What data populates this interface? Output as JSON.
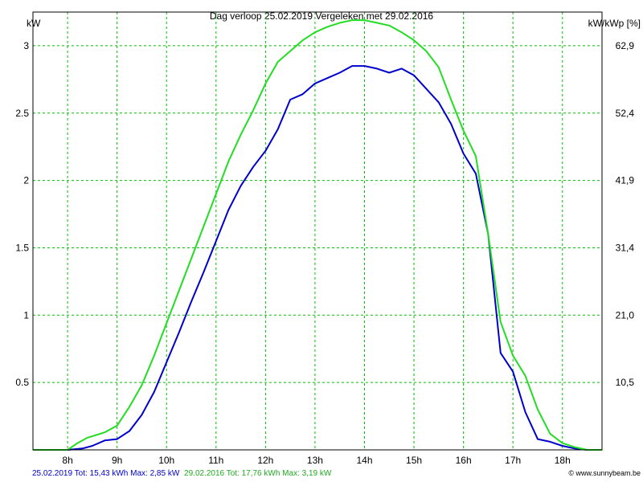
{
  "chart_data": {
    "type": "line",
    "title": "Dag  verloop 25.02.2019   Vergeleken met 29.02.2016",
    "y_left_unit": "kW",
    "y_right_unit": "kW/kWp [%]",
    "ylim": [
      0,
      3.25
    ],
    "xlim": [
      7.3,
      18.8
    ],
    "x_ticks": [
      8,
      9,
      10,
      11,
      12,
      13,
      14,
      15,
      16,
      17,
      18
    ],
    "x_tick_labels": [
      "8h",
      "9h",
      "10h",
      "11h",
      "12h",
      "13h",
      "14h",
      "15h",
      "16h",
      "17h",
      "18h"
    ],
    "y_left_ticks": [
      0.5,
      1,
      1.5,
      2,
      2.5,
      3
    ],
    "y_left_tick_labels": [
      "0.5",
      "1",
      "1.5",
      "2",
      "2.5",
      "3"
    ],
    "y_right_tick_labels": [
      "10,5",
      "21,0",
      "31,4",
      "41,9",
      "52,4",
      "62,9"
    ],
    "grid": true,
    "series": [
      {
        "color": "#0000cc",
        "x": [
          7.3,
          8.0,
          8.3,
          8.5,
          8.75,
          9.0,
          9.25,
          9.5,
          9.75,
          10.0,
          10.25,
          10.5,
          10.75,
          11.0,
          11.25,
          11.5,
          11.75,
          12.0,
          12.25,
          12.5,
          12.75,
          13.0,
          13.25,
          13.5,
          13.75,
          14.0,
          14.25,
          14.5,
          14.75,
          15.0,
          15.25,
          15.5,
          15.75,
          16.0,
          16.25,
          16.5,
          16.75,
          17.0,
          17.25,
          17.5,
          17.75,
          18.0,
          18.25,
          18.5,
          18.8
        ],
        "values": [
          0,
          0,
          0.01,
          0.03,
          0.07,
          0.08,
          0.14,
          0.26,
          0.43,
          0.65,
          0.87,
          1.1,
          1.32,
          1.55,
          1.78,
          1.96,
          2.1,
          2.22,
          2.38,
          2.6,
          2.64,
          2.72,
          2.76,
          2.8,
          2.85,
          2.85,
          2.83,
          2.8,
          2.83,
          2.78,
          2.68,
          2.58,
          2.42,
          2.2,
          2.05,
          1.6,
          0.72,
          0.58,
          0.28,
          0.08,
          0.06,
          0.03,
          0.01,
          0,
          0
        ]
      },
      {
        "color": "#22dd22",
        "x": [
          7.3,
          8.0,
          8.2,
          8.4,
          8.75,
          9.0,
          9.25,
          9.5,
          9.75,
          10.0,
          10.25,
          10.5,
          10.75,
          11.0,
          11.25,
          11.5,
          11.75,
          12.0,
          12.25,
          12.5,
          12.75,
          13.0,
          13.25,
          13.5,
          13.75,
          14.0,
          14.25,
          14.5,
          14.75,
          15.0,
          15.25,
          15.5,
          15.75,
          16.0,
          16.25,
          16.5,
          16.75,
          17.0,
          17.25,
          17.5,
          17.75,
          18.0,
          18.25,
          18.5,
          18.8
        ],
        "values": [
          0,
          0,
          0.05,
          0.09,
          0.13,
          0.18,
          0.32,
          0.48,
          0.7,
          0.94,
          1.18,
          1.42,
          1.66,
          1.9,
          2.14,
          2.34,
          2.52,
          2.72,
          2.88,
          2.96,
          3.04,
          3.1,
          3.14,
          3.17,
          3.19,
          3.19,
          3.17,
          3.15,
          3.1,
          3.04,
          2.96,
          2.84,
          2.6,
          2.37,
          2.18,
          1.6,
          0.95,
          0.7,
          0.55,
          0.3,
          0.12,
          0.05,
          0.02,
          0,
          0
        ]
      }
    ],
    "footer": {
      "left_part1": "25.02.2019 Tot: 15,43 kWh Max: 2,85 kW",
      "left_part1_color": "#0000cc",
      "left_part2": "29.02.2016 Tot: 17,76 kWh Max: 3,19 kW",
      "left_part2_color": "#22aa22",
      "credit": "© www.sunnybeam.be"
    }
  }
}
